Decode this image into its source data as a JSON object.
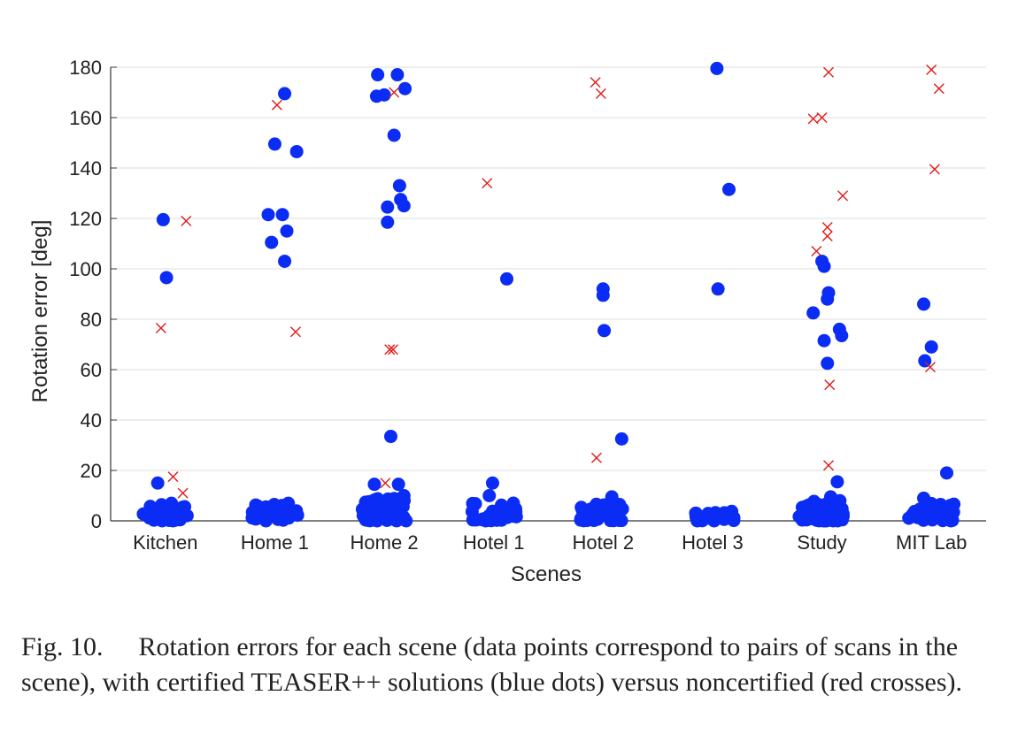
{
  "chart_data": {
    "type": "scatter",
    "title": "",
    "xlabel": "Scenes",
    "ylabel": "Rotation error [deg]",
    "categories": [
      "Kitchen",
      "Home 1",
      "Home 2",
      "Hotel 1",
      "Hotel 2",
      "Hotel 3",
      "Study",
      "MIT Lab"
    ],
    "ylim": [
      0,
      180
    ],
    "yticks": [
      0,
      20,
      40,
      60,
      80,
      100,
      120,
      140,
      160,
      180
    ],
    "grid": true,
    "series": [
      {
        "name": "certified",
        "marker": "dot",
        "color": "#0a2cf5",
        "points": [
          {
            "category": "Kitchen",
            "offset": -0.07,
            "y": 15
          },
          {
            "category": "Kitchen",
            "offset": -0.02,
            "y": 119.5
          },
          {
            "category": "Kitchen",
            "offset": 0.01,
            "y": 96.5
          },
          {
            "category": "Home 1",
            "offset": -0.06,
            "y": 121.5
          },
          {
            "category": "Home 1",
            "offset": 0.07,
            "y": 121.5
          },
          {
            "category": "Home 1",
            "offset": -0.03,
            "y": 110.5
          },
          {
            "category": "Home 1",
            "offset": 0.11,
            "y": 115
          },
          {
            "category": "Home 1",
            "offset": 0.09,
            "y": 103
          },
          {
            "category": "Home 1",
            "offset": 0.0,
            "y": 149.5
          },
          {
            "category": "Home 1",
            "offset": 0.2,
            "y": 146.5
          },
          {
            "category": "Home 1",
            "offset": 0.09,
            "y": 169.5
          },
          {
            "category": "Home 2",
            "offset": -0.06,
            "y": 177
          },
          {
            "category": "Home 2",
            "offset": 0.12,
            "y": 177
          },
          {
            "category": "Home 2",
            "offset": -0.07,
            "y": 168.5
          },
          {
            "category": "Home 2",
            "offset": 0.0,
            "y": 169
          },
          {
            "category": "Home 2",
            "offset": 0.19,
            "y": 171.5
          },
          {
            "category": "Home 2",
            "offset": 0.09,
            "y": 153
          },
          {
            "category": "Home 2",
            "offset": 0.14,
            "y": 133
          },
          {
            "category": "Home 2",
            "offset": 0.15,
            "y": 127.5
          },
          {
            "category": "Home 2",
            "offset": 0.03,
            "y": 124.5
          },
          {
            "category": "Home 2",
            "offset": 0.18,
            "y": 125
          },
          {
            "category": "Home 2",
            "offset": 0.03,
            "y": 118.5
          },
          {
            "category": "Home 2",
            "offset": 0.06,
            "y": 33.5
          },
          {
            "category": "Home 2",
            "offset": -0.09,
            "y": 14.5
          },
          {
            "category": "Home 2",
            "offset": 0.13,
            "y": 14.5
          },
          {
            "category": "Home 2",
            "offset": 0.18,
            "y": 10
          },
          {
            "category": "Hotel 1",
            "offset": -0.01,
            "y": 15
          },
          {
            "category": "Hotel 1",
            "offset": -0.04,
            "y": 10
          },
          {
            "category": "Hotel 1",
            "offset": 0.18,
            "y": 7
          },
          {
            "category": "Hotel 1",
            "offset": 0.12,
            "y": 96
          },
          {
            "category": "Hotel 2",
            "offset": 0.0,
            "y": 92
          },
          {
            "category": "Hotel 2",
            "offset": 0.0,
            "y": 89.5
          },
          {
            "category": "Hotel 2",
            "offset": 0.01,
            "y": 75.5
          },
          {
            "category": "Hotel 2",
            "offset": 0.17,
            "y": 32.5
          },
          {
            "category": "Hotel 2",
            "offset": 0.08,
            "y": 9.5
          },
          {
            "category": "Hotel 2",
            "offset": 0.15,
            "y": 6.5
          },
          {
            "category": "Hotel 3",
            "offset": 0.04,
            "y": 179.5
          },
          {
            "category": "Hotel 3",
            "offset": 0.15,
            "y": 131.5
          },
          {
            "category": "Hotel 3",
            "offset": 0.05,
            "y": 92
          },
          {
            "category": "Study",
            "offset": 0.0,
            "y": 103
          },
          {
            "category": "Study",
            "offset": 0.02,
            "y": 101
          },
          {
            "category": "Study",
            "offset": 0.06,
            "y": 90.5
          },
          {
            "category": "Study",
            "offset": 0.05,
            "y": 88
          },
          {
            "category": "Study",
            "offset": -0.08,
            "y": 82.5
          },
          {
            "category": "Study",
            "offset": 0.16,
            "y": 76
          },
          {
            "category": "Study",
            "offset": 0.18,
            "y": 73.5
          },
          {
            "category": "Study",
            "offset": 0.02,
            "y": 71.5
          },
          {
            "category": "Study",
            "offset": 0.05,
            "y": 62.5
          },
          {
            "category": "Study",
            "offset": 0.14,
            "y": 15.5
          },
          {
            "category": "Study",
            "offset": 0.08,
            "y": 9.5
          },
          {
            "category": "MIT Lab",
            "offset": -0.07,
            "y": 86
          },
          {
            "category": "MIT Lab",
            "offset": 0.0,
            "y": 69
          },
          {
            "category": "MIT Lab",
            "offset": -0.06,
            "y": 63.5
          },
          {
            "category": "MIT Lab",
            "offset": 0.14,
            "y": 19
          },
          {
            "category": "MIT Lab",
            "offset": -0.07,
            "y": 9
          }
        ],
        "cluster_near_zero": [
          {
            "category": "Kitchen",
            "count": 38,
            "ymax": 7
          },
          {
            "category": "Home 1",
            "count": 40,
            "ymax": 7
          },
          {
            "category": "Home 2",
            "count": 60,
            "ymax": 9
          },
          {
            "category": "Hotel 1",
            "count": 34,
            "ymax": 7
          },
          {
            "category": "Hotel 2",
            "count": 34,
            "ymax": 7
          },
          {
            "category": "Hotel 3",
            "count": 22,
            "ymax": 4
          },
          {
            "category": "Study",
            "count": 60,
            "ymax": 8
          },
          {
            "category": "MIT Lab",
            "count": 32,
            "ymax": 7
          }
        ]
      },
      {
        "name": "noncertified",
        "marker": "cross",
        "color": "#e01a1a",
        "points": [
          {
            "category": "Kitchen",
            "offset": 0.19,
            "y": 119
          },
          {
            "category": "Kitchen",
            "offset": -0.04,
            "y": 76.5
          },
          {
            "category": "Kitchen",
            "offset": 0.07,
            "y": 17.5
          },
          {
            "category": "Kitchen",
            "offset": 0.16,
            "y": 11
          },
          {
            "category": "Home 1",
            "offset": 0.02,
            "y": 165
          },
          {
            "category": "Home 1",
            "offset": 0.19,
            "y": 75
          },
          {
            "category": "Home 2",
            "offset": 0.09,
            "y": 170
          },
          {
            "category": "Home 2",
            "offset": 0.05,
            "y": 68
          },
          {
            "category": "Home 2",
            "offset": 0.08,
            "y": 68
          },
          {
            "category": "Home 2",
            "offset": 0.01,
            "y": 15
          },
          {
            "category": "Hotel 1",
            "offset": -0.06,
            "y": 134
          },
          {
            "category": "Hotel 2",
            "offset": -0.07,
            "y": 174
          },
          {
            "category": "Hotel 2",
            "offset": -0.02,
            "y": 169.5
          },
          {
            "category": "Hotel 2",
            "offset": -0.06,
            "y": 25
          },
          {
            "category": "Study",
            "offset": -0.08,
            "y": 159.5
          },
          {
            "category": "Study",
            "offset": 0.0,
            "y": 160
          },
          {
            "category": "Study",
            "offset": 0.06,
            "y": 178
          },
          {
            "category": "Study",
            "offset": 0.19,
            "y": 129
          },
          {
            "category": "Study",
            "offset": 0.05,
            "y": 116.5
          },
          {
            "category": "Study",
            "offset": 0.05,
            "y": 113
          },
          {
            "category": "Study",
            "offset": -0.05,
            "y": 107
          },
          {
            "category": "Study",
            "offset": 0.07,
            "y": 54
          },
          {
            "category": "Study",
            "offset": 0.06,
            "y": 22
          },
          {
            "category": "MIT Lab",
            "offset": 0.0,
            "y": 179
          },
          {
            "category": "MIT Lab",
            "offset": 0.07,
            "y": 171.5
          },
          {
            "category": "MIT Lab",
            "offset": 0.03,
            "y": 139.5
          },
          {
            "category": "MIT Lab",
            "offset": -0.01,
            "y": 61
          }
        ]
      }
    ]
  },
  "caption": {
    "fig_label": "Fig. 10.",
    "text": "Rotation errors for each scene (data points correspond to pairs of scans in the scene), with certified TEASER++ solutions (blue dots) versus noncertified (red crosses)."
  }
}
